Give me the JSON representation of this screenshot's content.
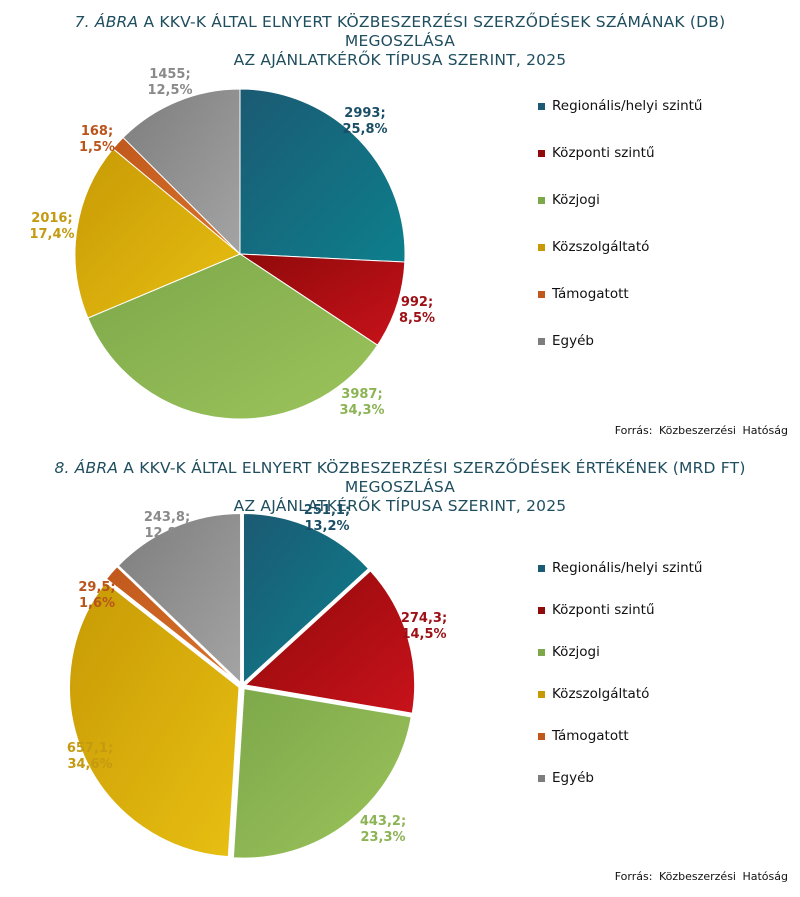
{
  "chart_data": [
    {
      "type": "pie",
      "title_fig": "7. ÁBRA",
      "title_rest": " A KKV-K ÁLTAL ELNYERT KÖZBESZERZÉSI SZERZŐDÉSEK SZÁMÁNAK (DB) MEGOSZLÁSA",
      "title_line2": "AZ AJÁNLATKÉRŐK TÍPUSA SZERINT, 2025",
      "source": "Forrás: Közbeszerzési Hatóság",
      "slices": [
        {
          "label": "Regionális/helyi szintű",
          "value_text": "2993;",
          "pct_text": "25,8%",
          "value": 2993,
          "pct": 25.8,
          "color": "#1b5a73",
          "color2": "#0d7f8c"
        },
        {
          "label": "Központi szintű",
          "value_text": "992;",
          "pct_text": "8,5%",
          "value": 992,
          "pct": 8.5,
          "color": "#8f0a0a",
          "color2": "#c8121b"
        },
        {
          "label": "Közjogi",
          "value_text": "3987;",
          "pct_text": "34,3%",
          "value": 3987,
          "pct": 34.3,
          "color": "#7da84a",
          "color2": "#9cc45c"
        },
        {
          "label": "Közszolgáltató",
          "value_text": "2016;",
          "pct_text": "17,4%",
          "value": 2016,
          "pct": 17.4,
          "color": "#c79a05",
          "color2": "#e8bf12"
        },
        {
          "label": "Támogatott",
          "value_text": "168;",
          "pct_text": "1,5%",
          "value": 168,
          "pct": 1.5,
          "color": "#c0581c",
          "color2": "#d9742c"
        },
        {
          "label": "Egyéb",
          "value_text": "1455;",
          "pct_text": "12,5%",
          "value": 1455,
          "pct": 12.5,
          "color": "#7d7d7d",
          "color2": "#a4a4a4"
        }
      ],
      "label_colors": [
        "#1b4f67",
        "#9c1016",
        "#8cb455",
        "#c49a10",
        "#b8541c",
        "#8a8a8a"
      ]
    },
    {
      "type": "pie",
      "title_fig": "8. ÁBRA",
      "title_rest": " A KKV-K ÁLTAL ELNYERT KÖZBESZERZÉSI SZERZŐDÉSEK ÉRTÉKÉNEK (MRD FT) MEGOSZLÁSA",
      "title_line2": "AZ AJÁNLATKÉRŐK TÍPUSA SZERINT, 2025",
      "source": "Forrás: Közbeszerzési Hatóság",
      "slices": [
        {
          "label": "Regionális/helyi szintű",
          "value_text": "251,1;",
          "pct_text": "13,2%",
          "value": 251.1,
          "pct": 13.2,
          "color": "#1b5a73",
          "color2": "#0d7f8c"
        },
        {
          "label": "Központi szintű",
          "value_text": "274,3;",
          "pct_text": "14,5%",
          "value": 274.3,
          "pct": 14.5,
          "color": "#8f0a0a",
          "color2": "#c8121b"
        },
        {
          "label": "Közjogi",
          "value_text": "443,2;",
          "pct_text": "23,3%",
          "value": 443.2,
          "pct": 23.3,
          "color": "#7da84a",
          "color2": "#9cc45c"
        },
        {
          "label": "Közszolgáltató",
          "value_text": "657,1;",
          "pct_text": "34,6%",
          "value": 657.1,
          "pct": 34.6,
          "color": "#c79a05",
          "color2": "#e8bf12"
        },
        {
          "label": "Támogatott",
          "value_text": "29,5;",
          "pct_text": "1,6%",
          "value": 29.5,
          "pct": 1.6,
          "color": "#c0581c",
          "color2": "#d9742c"
        },
        {
          "label": "Egyéb",
          "value_text": "243,8;",
          "pct_text": "12,8%",
          "value": 243.8,
          "pct": 12.8,
          "color": "#7d7d7d",
          "color2": "#a4a4a4"
        }
      ],
      "label_colors": [
        "#1b4f67",
        "#9c1016",
        "#8cb455",
        "#c49a10",
        "#b8541c",
        "#8a8a8a"
      ]
    }
  ]
}
